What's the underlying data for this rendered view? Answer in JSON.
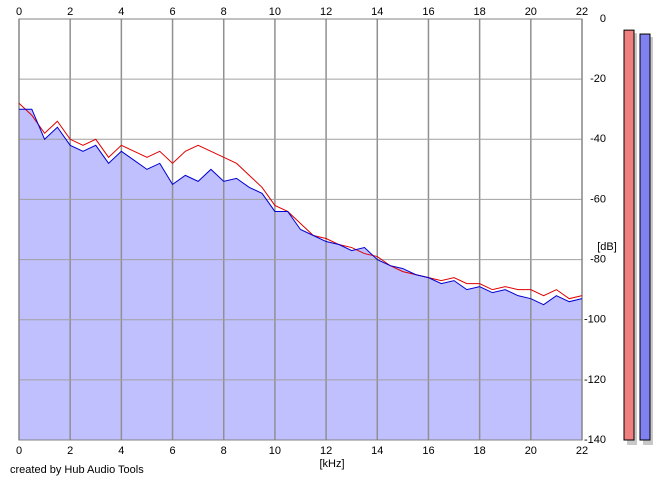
{
  "chart_data": {
    "type": "line",
    "x_label": "[kHz]",
    "y_label": "[dB]",
    "footer": "created by Hub Audio Tools",
    "x": [
      0,
      0.5,
      1,
      1.5,
      2,
      2.5,
      3,
      3.5,
      4,
      4.5,
      5,
      5.5,
      6,
      6.5,
      7,
      7.5,
      8,
      8.5,
      9,
      9.5,
      10,
      10.5,
      11,
      11.5,
      12,
      12.5,
      13,
      13.5,
      14,
      14.5,
      15,
      15.5,
      16,
      16.5,
      17,
      17.5,
      18,
      18.5,
      19,
      19.5,
      20,
      20.5,
      21,
      21.5,
      22
    ],
    "series": [
      {
        "color": "#e00000",
        "values": [
          -28,
          -32,
          -38,
          -34,
          -40,
          -42,
          -40,
          -46,
          -42,
          -44,
          -46,
          -44,
          -48,
          -44,
          -42,
          -44,
          -46,
          -48,
          -52,
          -56,
          -62,
          -64,
          -68,
          -72,
          -73,
          -75,
          -76,
          -78,
          -79,
          -82,
          -84,
          -85,
          -86,
          -87,
          -86,
          -88,
          -88,
          -90,
          -89,
          -90,
          -90,
          -92,
          -90,
          -93,
          -92
        ]
      },
      {
        "color": "#0000d0",
        "fill": "#c0c0ff",
        "values": [
          -30,
          -30,
          -40,
          -36,
          -42,
          -44,
          -42,
          -48,
          -44,
          -47,
          -50,
          -48,
          -55,
          -52,
          -54,
          -50,
          -54,
          -53,
          -56,
          -58,
          -64,
          -64,
          -70,
          -72,
          -74,
          -75,
          -77,
          -76,
          -80,
          -82,
          -83,
          -85,
          -86,
          -88,
          -87,
          -90,
          -89,
          -91,
          -90,
          -92,
          -93,
          -95,
          -92,
          -94,
          -93
        ]
      }
    ],
    "xlim": [
      0,
      22
    ],
    "xticks": [
      0,
      2,
      4,
      6,
      8,
      10,
      12,
      14,
      16,
      18,
      20,
      22
    ],
    "ylim": [
      -140,
      0
    ],
    "yticks": [
      0,
      -20,
      -40,
      -60,
      -80,
      -100,
      -120,
      -140
    ],
    "grid": true,
    "level_meters": [
      {
        "color": "#f08080",
        "value": -3.7
      },
      {
        "color": "#8080f0",
        "value": -5
      }
    ]
  }
}
